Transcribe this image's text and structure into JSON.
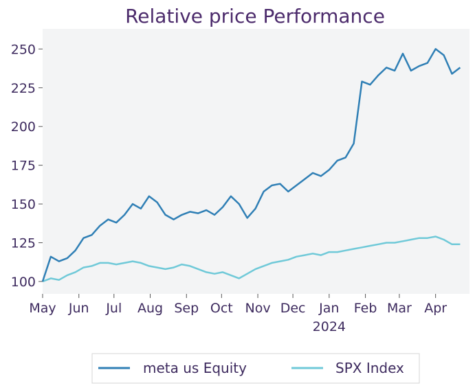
{
  "chart_data": {
    "type": "line",
    "title": "Relative price Performance",
    "xlabel": "",
    "ylabel": "",
    "ylim": [
      92,
      263
    ],
    "yticks": [
      100,
      125,
      150,
      175,
      200,
      225,
      250
    ],
    "x_tick_labels": [
      "May",
      "Jun",
      "Jul",
      "Aug",
      "Sep",
      "Oct",
      "Nov",
      "Dec",
      "Jan",
      "Feb",
      "Mar",
      "Apr"
    ],
    "x_year_label": "2024",
    "grid": false,
    "legend_position": "bottom",
    "colors": {
      "plot_background": "#f3f4f5",
      "meta": "#2f7fb5",
      "spx": "#6fc9d8"
    },
    "x": [
      "2023-05-01",
      "2023-05-08",
      "2023-05-15",
      "2023-05-22",
      "2023-05-29",
      "2023-06-05",
      "2023-06-12",
      "2023-06-19",
      "2023-06-26",
      "2023-07-03",
      "2023-07-10",
      "2023-07-17",
      "2023-07-24",
      "2023-07-31",
      "2023-08-07",
      "2023-08-14",
      "2023-08-21",
      "2023-08-28",
      "2023-09-04",
      "2023-09-11",
      "2023-09-18",
      "2023-09-25",
      "2023-10-02",
      "2023-10-09",
      "2023-10-16",
      "2023-10-23",
      "2023-10-30",
      "2023-11-06",
      "2023-11-13",
      "2023-11-20",
      "2023-11-27",
      "2023-12-04",
      "2023-12-11",
      "2023-12-18",
      "2023-12-25",
      "2024-01-01",
      "2024-01-08",
      "2024-01-15",
      "2024-01-22",
      "2024-01-29",
      "2024-02-05",
      "2024-02-12",
      "2024-02-19",
      "2024-02-26",
      "2024-03-04",
      "2024-03-11",
      "2024-03-18",
      "2024-03-25",
      "2024-04-01",
      "2024-04-08",
      "2024-04-15",
      "2024-04-22"
    ],
    "series": [
      {
        "name": "meta us Equity",
        "values": [
          100,
          116,
          113,
          115,
          120,
          128,
          130,
          136,
          140,
          138,
          143,
          150,
          147,
          155,
          151,
          143,
          140,
          143,
          145,
          144,
          146,
          143,
          148,
          155,
          150,
          141,
          147,
          158,
          162,
          163,
          158,
          162,
          166,
          170,
          168,
          172,
          178,
          180,
          189,
          229,
          227,
          233,
          238,
          236,
          247,
          236,
          239,
          241,
          250,
          246,
          234,
          238
        ]
      },
      {
        "name": "SPX Index",
        "values": [
          100,
          102,
          101,
          104,
          106,
          109,
          110,
          112,
          112,
          111,
          112,
          113,
          112,
          110,
          109,
          108,
          109,
          111,
          110,
          108,
          106,
          105,
          106,
          104,
          102,
          105,
          108,
          110,
          112,
          113,
          114,
          116,
          117,
          118,
          117,
          119,
          119,
          120,
          121,
          122,
          123,
          124,
          125,
          125,
          126,
          127,
          128,
          128,
          129,
          127,
          124,
          124
        ]
      }
    ]
  }
}
